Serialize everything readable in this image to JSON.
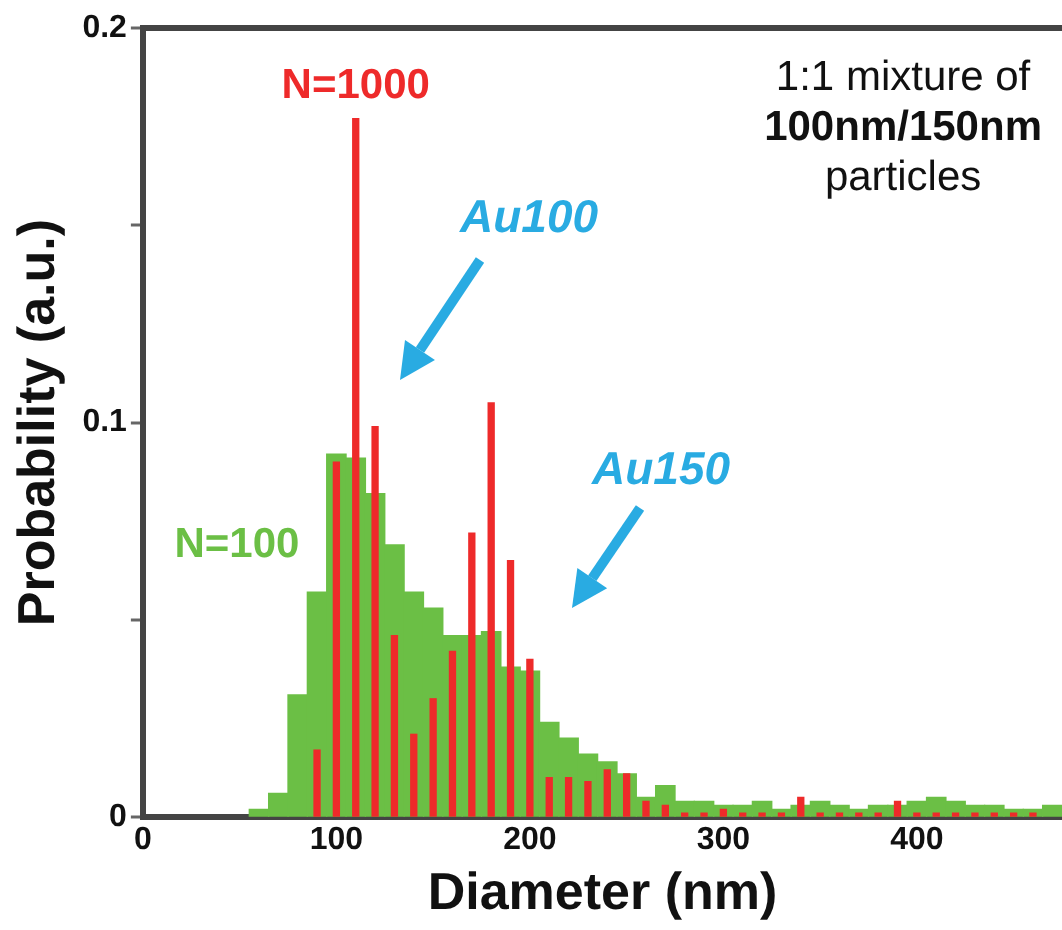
{
  "chart_data": {
    "type": "histogram",
    "xlabel": "Diameter (nm)",
    "ylabel": "Probability (a.u.)",
    "xlim": [
      0,
      475
    ],
    "xticks": [
      0,
      100,
      200,
      300,
      400
    ],
    "ylim": [
      0,
      0.2
    ],
    "yticks": [
      0,
      {
        "value": 0.05,
        "label": null
      },
      0.1,
      {
        "value": 0.15,
        "label": null
      },
      0.2
    ],
    "grid": false,
    "legend": "left",
    "bins": [
      55,
      65,
      75,
      85,
      95,
      105,
      115,
      125,
      135,
      145,
      155,
      165,
      175,
      185,
      195,
      205,
      215,
      225,
      235,
      245,
      255,
      265,
      275,
      285,
      295,
      305,
      315,
      325,
      335,
      345,
      355,
      365,
      375,
      385,
      395,
      405,
      415,
      425,
      435,
      445,
      455,
      465,
      475
    ],
    "series": [
      {
        "name": "N=100",
        "color": "#6bbf45",
        "values": [
          0.002,
          0.006,
          0.031,
          0.057,
          0.092,
          0.091,
          0.082,
          0.069,
          0.057,
          0.053,
          0.046,
          0.046,
          0.047,
          0.038,
          0.037,
          0.024,
          0.02,
          0.016,
          0.014,
          0.011,
          0.005,
          0.008,
          0.004,
          0.004,
          0.003,
          0.003,
          0.004,
          0.002,
          0.003,
          0.004,
          0.003,
          0.002,
          0.003,
          0.003,
          0.004,
          0.005,
          0.004,
          0.003,
          0.003,
          0.002,
          0.002,
          0.003
        ]
      },
      {
        "name": "N=1000",
        "type": "bar",
        "color": "#ee2a2a",
        "x": [
          90,
          100,
          110,
          120,
          130,
          140,
          150,
          160,
          170,
          180,
          190,
          200,
          210,
          220,
          230,
          240,
          250,
          260,
          270,
          280,
          290,
          300,
          310,
          320,
          330,
          340,
          350,
          360,
          370,
          380,
          390,
          400,
          410,
          420,
          430,
          440,
          450,
          460
        ],
        "values": [
          0.017,
          0.09,
          0.177,
          0.099,
          0.046,
          0.021,
          0.03,
          0.042,
          0.072,
          0.105,
          0.065,
          0.04,
          0.01,
          0.01,
          0.009,
          0.012,
          0.011,
          0.004,
          0.003,
          0.001,
          0.001,
          0.002,
          0.001,
          0.001,
          0.001,
          0.005,
          0.001,
          0.001,
          0.001,
          0.001,
          0.004,
          0.001,
          0.001,
          0.001,
          0.001,
          0.001,
          0.001,
          0.001
        ]
      }
    ],
    "annotations": [
      "Au100",
      "Au150",
      "1:1 mixture of\n100nm/150nm\nparticles"
    ]
  }
}
